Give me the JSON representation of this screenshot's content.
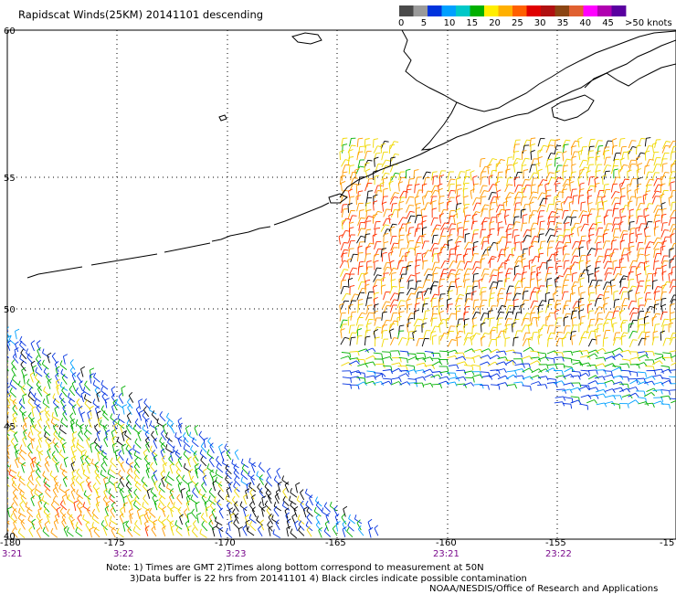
{
  "title": "Rapidscat Winds(25KM) 20141101 descending",
  "legend": {
    "unit_label": ">50 knots",
    "ticks": [
      "0",
      "5",
      "10",
      "15",
      "20",
      "25",
      "30",
      "35",
      "40",
      "45"
    ],
    "colors": [
      "#4a4a4a",
      "#9a9a9a",
      "#0033dd",
      "#00a0ff",
      "#00c8c8",
      "#00b000",
      "#ffee00",
      "#ffb000",
      "#ff6000",
      "#e00000",
      "#b01010",
      "#8b4513",
      "#e06030",
      "#ff00ff",
      "#b000b0",
      "#5a00a0"
    ]
  },
  "map": {
    "lat_labels": [
      "60",
      "55",
      "50",
      "45",
      "40"
    ],
    "lon_labels": [
      "-180",
      "-175",
      "-170",
      "-165",
      "-160",
      "-155",
      "-15"
    ],
    "time_labels": [
      "3:21",
      "3:22",
      "3:23",
      "23:21",
      "23:22"
    ],
    "time_color": "#7a0a8c"
  },
  "notes": {
    "line1": "Note: 1) Times are GMT 2)Times along bottom correspond to measurement at 50N",
    "line2": "3)Data buffer is 22 hrs from 20141101 4) Black circles indicate possible contamination",
    "credit": "NOAA/NESDIS/Office of Research and Applications"
  },
  "wind_colors": {
    "black": "#000000",
    "blue": "#0030e0",
    "cyan": "#00a0ff",
    "green": "#00b000",
    "yellow": "#f0d800",
    "orange": "#ff9a00",
    "red": "#ff3000"
  }
}
